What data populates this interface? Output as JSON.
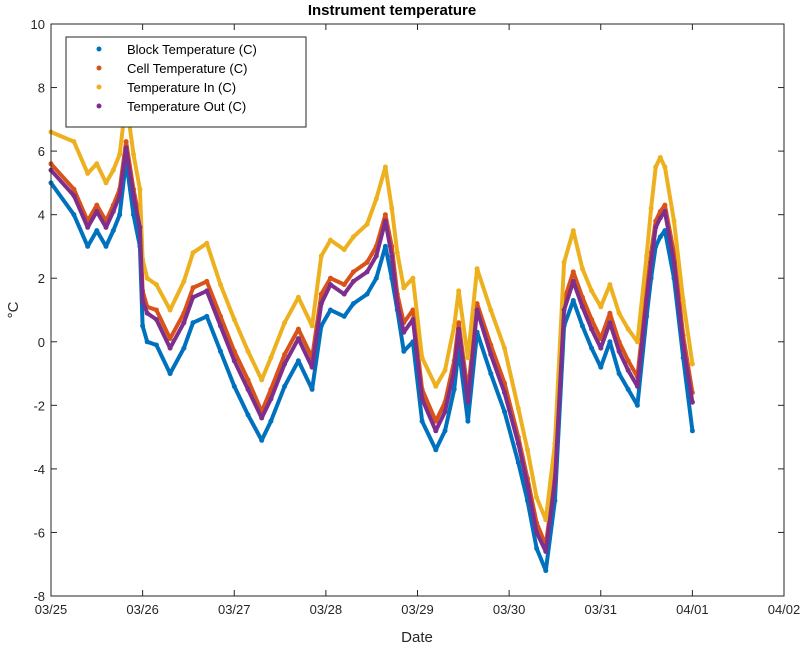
{
  "chart_data": {
    "type": "line",
    "title": "Instrument temperature",
    "xlabel": "Date",
    "ylabel": "°C",
    "xlim": [
      0,
      8
    ],
    "ylim": [
      -8,
      10
    ],
    "x_ticks": [
      0,
      1,
      2,
      3,
      4,
      5,
      6,
      7,
      8
    ],
    "x_tick_labels": [
      "03/25",
      "03/26",
      "03/27",
      "03/28",
      "03/29",
      "03/30",
      "03/31",
      "04/01",
      "04/02"
    ],
    "y_ticks": [
      -8,
      -6,
      -4,
      -2,
      0,
      2,
      4,
      6,
      8,
      10
    ],
    "y_tick_labels": [
      "-8",
      "-6",
      "-4",
      "-2",
      "0",
      "2",
      "4",
      "6",
      "8",
      "10"
    ],
    "x_unit": "days since 03/25 00:00",
    "legend_position": "top-left",
    "series": [
      {
        "name": "Block Temperature (C)",
        "color": "#0072bd",
        "x": [
          0,
          0.25,
          0.4,
          0.5,
          0.6,
          0.68,
          0.75,
          0.82,
          0.9,
          0.97,
          1.0,
          1.05,
          1.15,
          1.3,
          1.45,
          1.55,
          1.7,
          1.85,
          2.0,
          2.15,
          2.3,
          2.4,
          2.55,
          2.7,
          2.85,
          2.95,
          3.05,
          3.2,
          3.3,
          3.45,
          3.55,
          3.65,
          3.72,
          3.78,
          3.85,
          3.95,
          4.05,
          4.2,
          4.3,
          4.4,
          4.45,
          4.55,
          4.65,
          4.8,
          4.95,
          5.1,
          5.2,
          5.3,
          5.4,
          5.5,
          5.6,
          5.7,
          5.8,
          5.9,
          6.0,
          6.1,
          6.2,
          6.3,
          6.4,
          6.5,
          6.55,
          6.6,
          6.65,
          6.7,
          6.8,
          6.9,
          7.0
        ],
        "values": [
          5.0,
          4.0,
          3.0,
          3.5,
          3.0,
          3.5,
          4.0,
          5.7,
          4.0,
          3.0,
          0.5,
          0.0,
          -0.1,
          -1.0,
          -0.2,
          0.6,
          0.8,
          -0.3,
          -1.4,
          -2.3,
          -3.1,
          -2.5,
          -1.4,
          -0.6,
          -1.5,
          0.5,
          1.0,
          0.8,
          1.2,
          1.5,
          2.0,
          3.0,
          2.0,
          1.0,
          -0.3,
          0.0,
          -2.5,
          -3.4,
          -2.8,
          -1.5,
          -0.2,
          -2.5,
          0.3,
          -1.0,
          -2.2,
          -3.8,
          -5.0,
          -6.5,
          -7.2,
          -5.0,
          0.5,
          1.3,
          0.5,
          -0.2,
          -0.8,
          0.0,
          -1.0,
          -1.5,
          -2.0,
          0.8,
          2.0,
          3.0,
          3.3,
          3.5,
          2.0,
          -0.5,
          -2.8
        ]
      },
      {
        "name": "Cell Temperature (C)",
        "color": "#d95319",
        "x": [
          0,
          0.25,
          0.4,
          0.5,
          0.6,
          0.68,
          0.75,
          0.82,
          0.9,
          0.97,
          1.0,
          1.05,
          1.15,
          1.3,
          1.45,
          1.55,
          1.7,
          1.85,
          2.0,
          2.15,
          2.3,
          2.4,
          2.55,
          2.7,
          2.85,
          2.95,
          3.05,
          3.2,
          3.3,
          3.45,
          3.55,
          3.65,
          3.72,
          3.78,
          3.85,
          3.95,
          4.05,
          4.2,
          4.3,
          4.4,
          4.45,
          4.55,
          4.65,
          4.8,
          4.95,
          5.1,
          5.2,
          5.3,
          5.4,
          5.5,
          5.6,
          5.7,
          5.8,
          5.9,
          6.0,
          6.1,
          6.2,
          6.3,
          6.4,
          6.5,
          6.55,
          6.6,
          6.65,
          6.7,
          6.8,
          6.9,
          7.0
        ],
        "values": [
          5.6,
          4.8,
          3.8,
          4.3,
          3.8,
          4.3,
          4.8,
          6.3,
          4.8,
          3.8,
          1.6,
          1.1,
          1.0,
          0.1,
          0.9,
          1.7,
          1.9,
          0.8,
          -0.3,
          -1.2,
          -2.2,
          -1.5,
          -0.4,
          0.4,
          -0.5,
          1.5,
          2.0,
          1.8,
          2.2,
          2.5,
          3.0,
          4.0,
          3.0,
          1.5,
          0.6,
          1.0,
          -1.5,
          -2.5,
          -1.9,
          -0.6,
          0.6,
          -1.6,
          1.2,
          -0.1,
          -1.3,
          -3.0,
          -4.3,
          -5.7,
          -6.4,
          -4.2,
          1.3,
          2.2,
          1.4,
          0.7,
          0.1,
          0.9,
          0.0,
          -0.6,
          -1.1,
          1.6,
          2.8,
          3.8,
          4.1,
          4.3,
          2.8,
          0.2,
          -1.6
        ]
      },
      {
        "name": "Temperature In (C)",
        "color": "#edb120",
        "x": [
          0,
          0.25,
          0.4,
          0.5,
          0.6,
          0.68,
          0.75,
          0.82,
          0.9,
          0.97,
          1.0,
          1.05,
          1.15,
          1.3,
          1.45,
          1.55,
          1.7,
          1.85,
          2.0,
          2.15,
          2.3,
          2.4,
          2.55,
          2.7,
          2.85,
          2.95,
          3.05,
          3.2,
          3.3,
          3.45,
          3.55,
          3.65,
          3.72,
          3.78,
          3.85,
          3.95,
          4.05,
          4.2,
          4.3,
          4.4,
          4.45,
          4.55,
          4.65,
          4.8,
          4.95,
          5.1,
          5.2,
          5.3,
          5.4,
          5.5,
          5.6,
          5.7,
          5.8,
          5.9,
          6.0,
          6.1,
          6.2,
          6.3,
          6.4,
          6.5,
          6.55,
          6.6,
          6.65,
          6.7,
          6.8,
          6.9,
          7.0
        ],
        "values": [
          6.6,
          6.3,
          5.3,
          5.6,
          5.0,
          5.4,
          5.9,
          7.6,
          5.9,
          4.8,
          2.6,
          2.0,
          1.8,
          1.0,
          1.9,
          2.8,
          3.1,
          1.8,
          0.7,
          -0.3,
          -1.2,
          -0.5,
          0.6,
          1.4,
          0.5,
          2.7,
          3.2,
          2.9,
          3.3,
          3.7,
          4.5,
          5.5,
          4.2,
          2.8,
          1.7,
          2.0,
          -0.5,
          -1.4,
          -0.9,
          0.5,
          1.6,
          -0.5,
          2.3,
          1.0,
          -0.2,
          -2.1,
          -3.4,
          -4.9,
          -5.6,
          -3.2,
          2.5,
          3.5,
          2.3,
          1.6,
          1.1,
          1.8,
          0.9,
          0.4,
          0.0,
          2.7,
          4.2,
          5.5,
          5.8,
          5.5,
          3.8,
          1.3,
          -0.7
        ]
      },
      {
        "name": "Temperature Out (C)",
        "color": "#7e2f8e",
        "x": [
          0,
          0.25,
          0.4,
          0.5,
          0.6,
          0.68,
          0.75,
          0.82,
          0.9,
          0.97,
          1.0,
          1.05,
          1.15,
          1.3,
          1.45,
          1.55,
          1.7,
          1.85,
          2.0,
          2.15,
          2.3,
          2.4,
          2.55,
          2.7,
          2.85,
          2.95,
          3.05,
          3.2,
          3.3,
          3.45,
          3.55,
          3.65,
          3.72,
          3.78,
          3.85,
          3.95,
          4.05,
          4.2,
          4.3,
          4.4,
          4.45,
          4.55,
          4.65,
          4.8,
          4.95,
          5.1,
          5.2,
          5.3,
          5.4,
          5.5,
          5.6,
          5.7,
          5.8,
          5.9,
          6.0,
          6.1,
          6.2,
          6.3,
          6.4,
          6.5,
          6.55,
          6.6,
          6.65,
          6.7,
          6.8,
          6.9,
          7.0
        ],
        "values": [
          5.4,
          4.6,
          3.6,
          4.1,
          3.6,
          4.1,
          4.6,
          6.1,
          4.6,
          3.6,
          1.3,
          0.9,
          0.7,
          -0.2,
          0.6,
          1.4,
          1.6,
          0.5,
          -0.6,
          -1.5,
          -2.4,
          -1.8,
          -0.7,
          0.1,
          -0.8,
          1.2,
          1.8,
          1.5,
          1.9,
          2.2,
          2.7,
          3.8,
          2.7,
          1.2,
          0.3,
          0.7,
          -1.8,
          -2.8,
          -2.2,
          -0.9,
          0.4,
          -1.9,
          1.0,
          -0.4,
          -1.6,
          -3.2,
          -4.5,
          -6.0,
          -6.6,
          -4.4,
          1.0,
          1.9,
          1.1,
          0.4,
          -0.2,
          0.6,
          -0.3,
          -0.9,
          -1.4,
          1.3,
          2.5,
          3.6,
          3.9,
          4.1,
          2.5,
          -0.1,
          -1.9
        ]
      }
    ]
  }
}
